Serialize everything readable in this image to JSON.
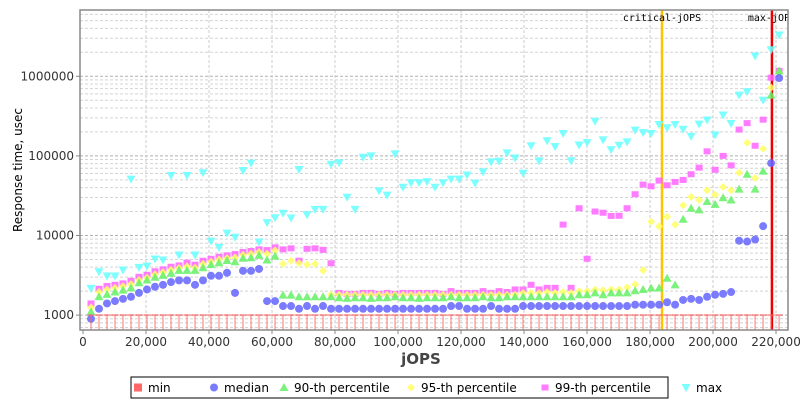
{
  "chart_data": {
    "type": "scatter",
    "xlabel": "jOPS",
    "ylabel": "Response time, usec",
    "y_scale": "log",
    "xlim": [
      -950,
      223800
    ],
    "ylim": [
      650,
      6800000
    ],
    "grid": true,
    "legend_position": "bottom",
    "x_ticks": [
      "0",
      "20,000",
      "40,000",
      "60,000",
      "80,000",
      "100,000",
      "120,000",
      "140,000",
      "160,000",
      "180,000",
      "200,000",
      "220,000"
    ],
    "x_tick_values": [
      0,
      20000,
      40000,
      60000,
      80000,
      100000,
      120000,
      140000,
      160000,
      180000,
      200000,
      220000
    ],
    "y_ticks": [
      "1000",
      "10000",
      "100000",
      "1000000"
    ],
    "y_tick_values": [
      1000,
      10000,
      100000,
      1000000
    ],
    "markers": [
      {
        "label": "critical-jOPS",
        "x": 183800,
        "color": "#ffc400"
      },
      {
        "label": "max-jOPS",
        "x": 218700,
        "color": "#ee0000"
      }
    ],
    "x": [
      2540,
      5080,
      7620,
      10160,
      12700,
      15240,
      17780,
      20320,
      22860,
      25400,
      27940,
      30480,
      33020,
      35560,
      38100,
      40640,
      43180,
      45720,
      48260,
      50800,
      53340,
      55880,
      58420,
      60960,
      63500,
      66040,
      68580,
      71120,
      73660,
      76200,
      78740,
      81280,
      83820,
      86360,
      88900,
      91440,
      93980,
      96520,
      99060,
      101600,
      104140,
      106680,
      109220,
      111760,
      114300,
      116840,
      119380,
      121920,
      124460,
      127000,
      129540,
      132080,
      134620,
      137160,
      139700,
      142240,
      144780,
      147320,
      149860,
      152400,
      154940,
      157480,
      160020,
      162560,
      165100,
      167640,
      170180,
      172720,
      175260,
      177800,
      180340,
      182880,
      185420,
      187960,
      190500,
      193040,
      195580,
      198120,
      200660,
      203200,
      205740,
      208280,
      210820,
      213360,
      215900,
      218440,
      220980
    ],
    "series": [
      {
        "name": "min",
        "color": "#ff6666",
        "marker": "square",
        "values": [
          1000,
          1000,
          1000,
          1000,
          1000,
          1000,
          1000,
          1000,
          1000,
          1000,
          1000,
          1000,
          1000,
          1000,
          1000,
          1000,
          1000,
          1000,
          1000,
          1000,
          1000,
          1000,
          1000,
          1000,
          1000,
          1000,
          1000,
          1000,
          1000,
          1000,
          1000,
          1000,
          1000,
          1000,
          1000,
          1000,
          1000,
          1000,
          1000,
          1000,
          1000,
          1000,
          1000,
          1000,
          1000,
          1000,
          1000,
          1000,
          1000,
          1000,
          1000,
          1000,
          1000,
          1000,
          1000,
          1000,
          1000,
          1000,
          1000,
          1000,
          1000,
          1000,
          1000,
          1000,
          1000,
          1000,
          1000,
          1000,
          1000,
          1000,
          1000,
          1000,
          1000,
          1000,
          1000,
          1000,
          1000,
          1000,
          1000,
          1000,
          1000,
          1000,
          1000,
          1000,
          1000,
          1000,
          1000
        ]
      },
      {
        "name": "median",
        "color": "#6464ff",
        "marker": "circle",
        "values": [
          900,
          1200,
          1400,
          1500,
          1600,
          1700,
          1900,
          2100,
          2270,
          2400,
          2600,
          2730,
          2730,
          2400,
          2730,
          3120,
          3120,
          3400,
          1900,
          3600,
          3600,
          3800,
          1500,
          1500,
          1300,
          1300,
          1200,
          1300,
          1200,
          1300,
          1200,
          1200,
          1200,
          1200,
          1200,
          1200,
          1200,
          1200,
          1200,
          1200,
          1200,
          1200,
          1200,
          1200,
          1200,
          1300,
          1300,
          1200,
          1200,
          1200,
          1300,
          1200,
          1200,
          1200,
          1300,
          1300,
          1300,
          1300,
          1300,
          1300,
          1300,
          1300,
          1300,
          1300,
          1300,
          1300,
          1300,
          1300,
          1350,
          1350,
          1350,
          1350,
          1450,
          1350,
          1550,
          1600,
          1550,
          1700,
          1800,
          1850,
          1950,
          8600,
          8400,
          8900,
          13100,
          81000,
          950000
        ]
      },
      {
        "name": "90-th percentile",
        "color": "#64f064",
        "marker": "triangle-up",
        "values": [
          1100,
          1700,
          1820,
          1950,
          2060,
          2200,
          2550,
          2760,
          2990,
          3150,
          3350,
          3650,
          3650,
          3650,
          3930,
          4300,
          4550,
          4850,
          4680,
          5170,
          5250,
          5630,
          4930,
          5500,
          1785,
          1785,
          1700,
          1700,
          1700,
          1700,
          1700,
          1650,
          1620,
          1650,
          1650,
          1620,
          1650,
          1650,
          1700,
          1650,
          1650,
          1620,
          1650,
          1650,
          1650,
          1700,
          1650,
          1650,
          1650,
          1700,
          1650,
          1650,
          1700,
          1700,
          1700,
          1700,
          1700,
          1700,
          1700,
          1700,
          1700,
          1800,
          1800,
          1900,
          1800,
          1900,
          1900,
          1900,
          2020,
          2100,
          2190,
          2190,
          2900,
          2400,
          16000,
          22000,
          21000,
          26700,
          24600,
          29800,
          27900,
          38300,
          58800,
          38300,
          64400,
          580000,
          1170000
        ]
      },
      {
        "name": "95-th percentile",
        "color": "#ffff64",
        "marker": "diamond",
        "values": [
          1250,
          1950,
          2100,
          2200,
          2300,
          2450,
          2750,
          2950,
          3250,
          3450,
          3700,
          3900,
          4100,
          3950,
          4400,
          4700,
          5000,
          5200,
          5300,
          5700,
          5900,
          6200,
          5900,
          6500,
          4400,
          4820,
          4500,
          4300,
          4400,
          3600,
          1800,
          1800,
          1800,
          1800,
          1800,
          1800,
          1800,
          1800,
          1800,
          1800,
          1800,
          1800,
          1800,
          1800,
          1800,
          1800,
          1800,
          1800,
          1800,
          1800,
          1800,
          1800,
          1800,
          1800,
          1900,
          1900,
          1900,
          1950,
          1900,
          1950,
          1900,
          2000,
          2000,
          2100,
          2050,
          2100,
          2100,
          2230,
          2430,
          3680,
          14900,
          13000,
          17200,
          13700,
          23900,
          30600,
          27900,
          37000,
          32500,
          40600,
          37000,
          61500,
          146000,
          52700,
          123000,
          720000,
          1100000
        ]
      },
      {
        "name": "99-th percentile",
        "color": "#ff64ff",
        "marker": "square",
        "values": [
          1400,
          2140,
          2320,
          2400,
          2500,
          2700,
          3030,
          3210,
          3550,
          3760,
          4050,
          4210,
          4550,
          4300,
          4820,
          5100,
          5400,
          5630,
          5850,
          6200,
          6380,
          6700,
          6560,
          7100,
          6700,
          6900,
          4820,
          6800,
          6900,
          6600,
          4480,
          1900,
          1850,
          1850,
          1900,
          1900,
          1850,
          1900,
          1850,
          1900,
          1900,
          1900,
          1900,
          1900,
          1850,
          2000,
          1900,
          1900,
          1900,
          2000,
          1900,
          2000,
          1950,
          2100,
          2100,
          2400,
          2100,
          2200,
          2200,
          13700,
          2200,
          22000,
          5100,
          20000,
          19300,
          17600,
          17700,
          22000,
          33000,
          43600,
          41500,
          48900,
          42800,
          47100,
          49900,
          58800,
          71200,
          114000,
          66900,
          100000,
          76000,
          214000,
          258000,
          134000,
          285000,
          960000,
          1170000
        ]
      },
      {
        "name": "max",
        "color": "#64ffff",
        "marker": "triangle-down",
        "values": [
          2170,
          3500,
          3100,
          3100,
          3680,
          51000,
          3980,
          4130,
          5060,
          4930,
          57000,
          5680,
          57000,
          5680,
          61500,
          8500,
          7100,
          10700,
          9500,
          65500,
          81000,
          8300,
          14500,
          16700,
          19000,
          16600,
          67500,
          18200,
          21300,
          21300,
          78500,
          82000,
          30200,
          21300,
          96000,
          100000,
          36300,
          32200,
          106000,
          40400,
          46000,
          46000,
          47500,
          40400,
          46000,
          51000,
          51000,
          57500,
          45500,
          63000,
          84000,
          86000,
          109000,
          94000,
          60500,
          134000,
          86500,
          155000,
          131000,
          191000,
          87000,
          137000,
          147000,
          272000,
          159000,
          120000,
          136000,
          150000,
          211000,
          196000,
          191000,
          248000,
          226000,
          248000,
          216000,
          176000,
          251000,
          282000,
          183000,
          326000,
          255000,
          580000,
          640000,
          1800000,
          500000,
          2150000,
          3300000
        ]
      }
    ]
  }
}
